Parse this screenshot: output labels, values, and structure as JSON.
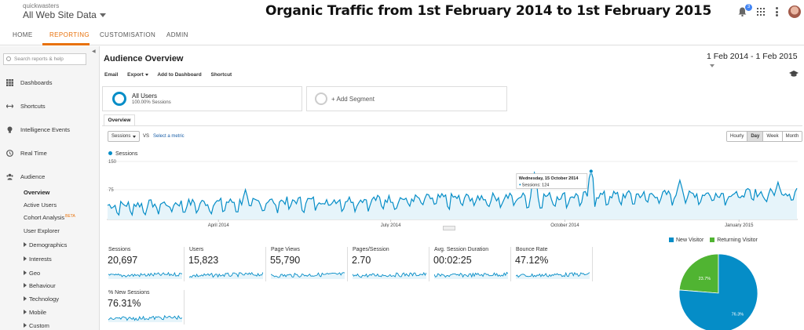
{
  "header": {
    "account": "quickwasters",
    "property": "All Web Site Data",
    "overlay_title": "Organic Traffic from 1st February 2014 to 1st February 2015",
    "notifications_count": "3"
  },
  "nav": {
    "home": "HOME",
    "reporting": "REPORTING",
    "customisation": "CUSTOMISATION",
    "admin": "ADMIN"
  },
  "sidebar": {
    "search_placeholder": "Search reports & help",
    "items": [
      {
        "label": "Dashboards",
        "icon": "grid-icon"
      },
      {
        "label": "Shortcuts",
        "icon": "arrows-icon"
      },
      {
        "label": "Intelligence Events",
        "icon": "lightbulb-icon"
      },
      {
        "label": "Real Time",
        "icon": "clock-icon"
      },
      {
        "label": "Audience",
        "icon": "people-icon"
      }
    ],
    "audience_sub": [
      "Overview",
      "Active Users",
      "Cohort Analysis",
      "User Explorer"
    ],
    "beta_label": "BETA",
    "audience_groups": [
      "Demographics",
      "Interests",
      "Geo",
      "Behaviour",
      "Technology",
      "Mobile",
      "Custom"
    ]
  },
  "main": {
    "title": "Audience Overview",
    "date_range": "1 Feb 2014 - 1 Feb 2015",
    "toolbar": {
      "email": "Email",
      "export": "Export",
      "add_to_dashboard": "Add to Dashboard",
      "shortcut": "Shortcut"
    },
    "segment": {
      "name": "All Users",
      "sub": "100.00% Sessions",
      "add": "+ Add Segment"
    },
    "tab": "Overview",
    "metric_select": "Sessions",
    "vs": "VS",
    "select_metric": "Select a metric",
    "granularity": [
      "Hourly",
      "Day",
      "Week",
      "Month"
    ],
    "granularity_active": "Day",
    "legend_label": "Sessions"
  },
  "chart_data": {
    "type": "line",
    "series": [
      {
        "name": "Sessions",
        "color": "#058dc7"
      }
    ],
    "y_ticks": [
      "150",
      "75"
    ],
    "ylim": [
      0,
      150
    ],
    "x_ticks": [
      "April 2014",
      "July 2014",
      "October 2014",
      "January 2015"
    ],
    "x_range": [
      "2014-02-01",
      "2015-02-01"
    ],
    "tooltip": {
      "date": "Wednesday, 15 October 2014",
      "text": "Sessions: 124",
      "date_value": "2014-10-15",
      "value": 124
    },
    "shape": {
      "y_start": 25,
      "y_end": 60,
      "oscillation": 25,
      "peaks": [
        {
          "date": "2014-04-15",
          "value": 75
        },
        {
          "date": "2014-09-15",
          "value": 120
        },
        {
          "date": "2014-10-15",
          "value": 124
        },
        {
          "date": "2014-12-01",
          "value": 100
        },
        {
          "date": "2015-01-22",
          "value": 95
        }
      ]
    }
  },
  "scorecards": [
    {
      "name": "Sessions",
      "value": "20,697"
    },
    {
      "name": "Users",
      "value": "15,823"
    },
    {
      "name": "Page Views",
      "value": "55,790"
    },
    {
      "name": "Pages/Session",
      "value": "2.70"
    },
    {
      "name": "Avg. Session Duration",
      "value": "00:02:25"
    },
    {
      "name": "Bounce Rate",
      "value": "47.12%"
    },
    {
      "name": "% New Sessions",
      "value": "76.31%"
    }
  ],
  "pie": {
    "type": "pie",
    "slices": [
      {
        "name": "New Visitor",
        "value": 76.3,
        "label": "76.3%",
        "color": "#058dc7"
      },
      {
        "name": "Returning Visitor",
        "value": 23.7,
        "label": "23.7%",
        "color": "#50b432"
      }
    ]
  }
}
